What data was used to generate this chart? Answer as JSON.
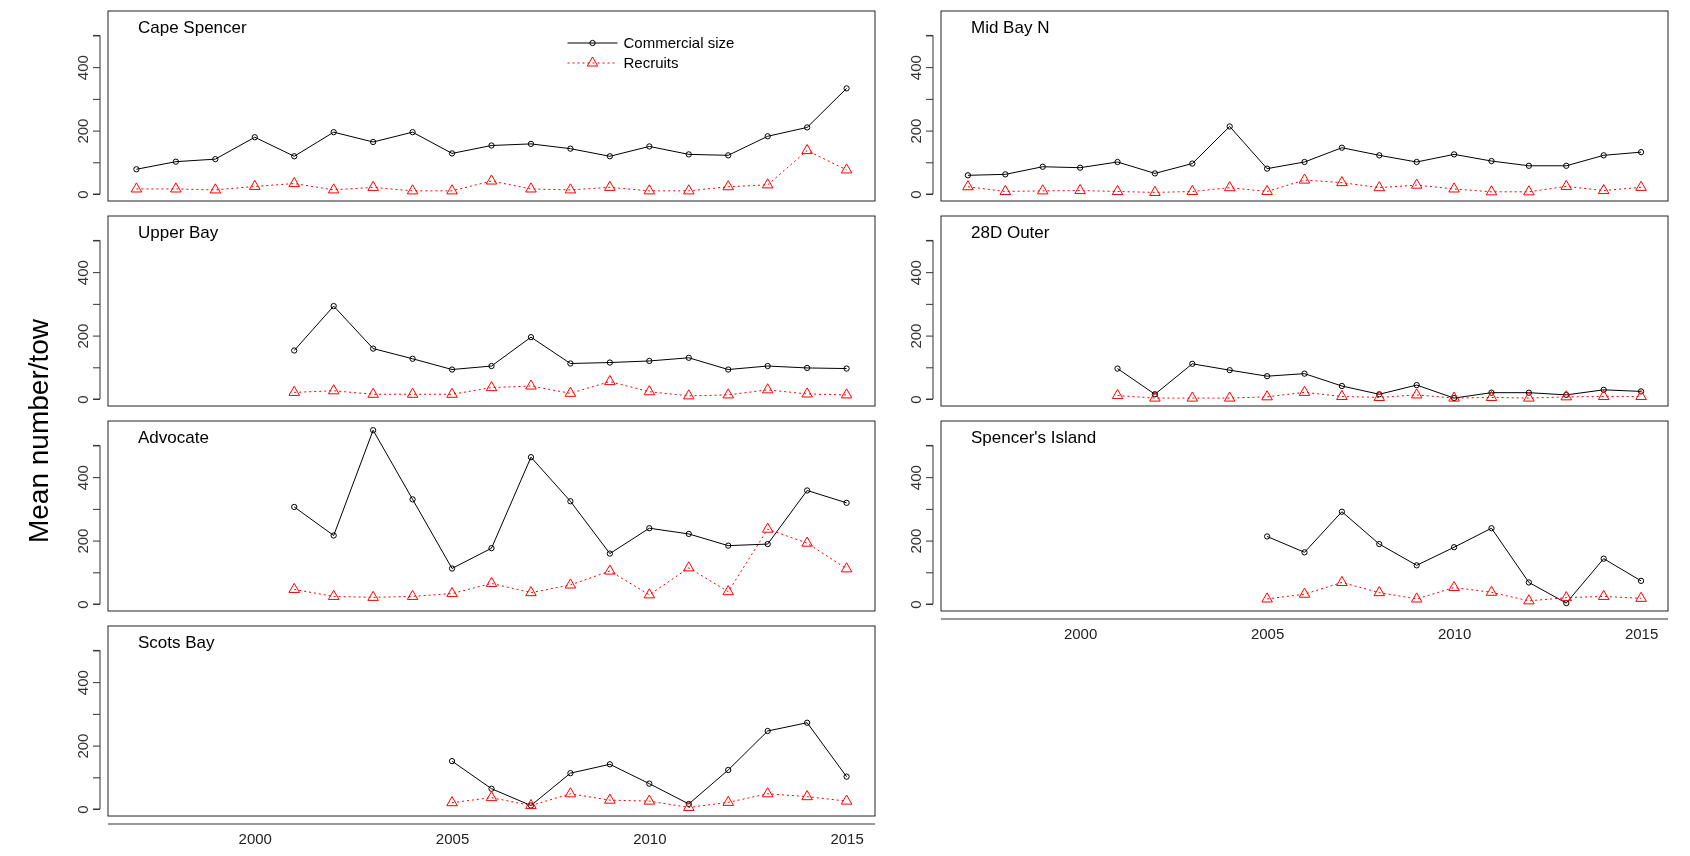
{
  "chart_data": [
    {
      "type": "line",
      "title": "Cape Spencer",
      "legend": "top right",
      "tick_labels": "y",
      "xlim": [
        1996.28,
        2015.72
      ],
      "ylim": [
        -22,
        577
      ],
      "yticks": [
        0,
        {
          "value": 100,
          "label": null
        },
        200,
        {
          "value": 300,
          "label": null
        },
        400,
        {
          "value": 500,
          "label": null
        }
      ],
      "series": [
        {
          "name": "Commercial size",
          "color": "#000000",
          "marker": "circle",
          "line_style": "solid",
          "x": [
            1997,
            1998,
            1999,
            2000,
            2001,
            2002,
            2003,
            2004,
            2005,
            2006,
            2007,
            2008,
            2009,
            2010,
            2011,
            2012,
            2013,
            2014,
            2015
          ],
          "values": [
            78,
            102,
            110,
            179,
            119,
            195,
            164,
            195,
            128,
            153,
            158,
            143,
            119,
            150,
            125,
            122,
            182,
            210,
            333
          ]
        },
        {
          "name": "Recruits",
          "color": "#ff0000",
          "marker": "triangle",
          "line_style": "dotted",
          "x": [
            1997,
            1998,
            1999,
            2000,
            2001,
            2002,
            2003,
            2004,
            2005,
            2006,
            2007,
            2008,
            2009,
            2010,
            2011,
            2012,
            2013,
            2014,
            2015
          ],
          "values": [
            16,
            16,
            13,
            24,
            33,
            13,
            21,
            10,
            10,
            41,
            16,
            13,
            21,
            10,
            10,
            23,
            29,
            137,
            76
          ]
        }
      ]
    },
    {
      "type": "line",
      "title": "Mid Bay N",
      "tick_labels": "y",
      "xlim": [
        1996.28,
        2015.72
      ],
      "ylim": [
        -22,
        577
      ],
      "yticks": [
        0,
        {
          "value": 100,
          "label": null
        },
        200,
        {
          "value": 300,
          "label": null
        },
        400,
        {
          "value": 500,
          "label": null
        }
      ],
      "series": [
        {
          "color": "#000000",
          "marker": "circle",
          "line_style": "solid",
          "x": [
            1997,
            1998,
            1999,
            2000,
            2001,
            2002,
            2003,
            2004,
            2005,
            2006,
            2007,
            2008,
            2009,
            2010,
            2011,
            2012,
            2013,
            2014,
            2015
          ],
          "values": [
            59,
            62,
            86,
            83,
            101,
            65,
            96,
            213,
            80,
            101,
            146,
            122,
            101,
            125,
            104,
            89,
            89,
            122,
            132
          ]
        },
        {
          "color": "#ff0000",
          "marker": "triangle",
          "line_style": "dotted",
          "x": [
            1997,
            1998,
            1999,
            2000,
            2001,
            2002,
            2003,
            2004,
            2005,
            2006,
            2007,
            2008,
            2009,
            2010,
            2011,
            2012,
            2013,
            2014,
            2015
          ],
          "values": [
            23,
            8,
            10,
            11,
            8,
            5,
            8,
            20,
            8,
            44,
            36,
            20,
            28,
            16,
            7,
            7,
            24,
            11,
            21
          ]
        }
      ]
    },
    {
      "type": "line",
      "title": "Upper Bay",
      "tick_labels": "y",
      "xlim": [
        1996.28,
        2015.72
      ],
      "ylim": [
        -22,
        577
      ],
      "yticks": [
        0,
        {
          "value": 100,
          "label": null
        },
        200,
        {
          "value": 300,
          "label": null
        },
        400,
        {
          "value": 500,
          "label": null
        }
      ],
      "series": [
        {
          "color": "#000000",
          "marker": "circle",
          "line_style": "solid",
          "x": [
            2001,
            2002,
            2003,
            2004,
            2005,
            2006,
            2007,
            2008,
            2009,
            2010,
            2011,
            2012,
            2013,
            2014,
            2015
          ],
          "values": [
            153,
            293,
            159,
            127,
            93,
            104,
            195,
            112,
            115,
            120,
            130,
            93,
            104,
            98,
            96
          ]
        },
        {
          "color": "#ff0000",
          "marker": "triangle",
          "line_style": "dotted",
          "x": [
            2001,
            2002,
            2003,
            2004,
            2005,
            2006,
            2007,
            2008,
            2009,
            2010,
            2011,
            2012,
            2013,
            2014,
            2015
          ],
          "values": [
            21,
            26,
            15,
            15,
            15,
            36,
            41,
            18,
            55,
            23,
            10,
            13,
            29,
            16,
            13
          ]
        }
      ]
    },
    {
      "type": "line",
      "title": "28D Outer",
      "tick_labels": "y",
      "xlim": [
        1996.28,
        2015.72
      ],
      "ylim": [
        -22,
        577
      ],
      "yticks": [
        0,
        {
          "value": 100,
          "label": null
        },
        200,
        {
          "value": 300,
          "label": null
        },
        400,
        {
          "value": 500,
          "label": null
        }
      ],
      "series": [
        {
          "color": "#000000",
          "marker": "circle",
          "line_style": "solid",
          "x": [
            2001,
            2002,
            2003,
            2004,
            2005,
            2006,
            2007,
            2008,
            2009,
            2010,
            2011,
            2012,
            2013,
            2014,
            2015
          ],
          "values": [
            96,
            15,
            111,
            91,
            72,
            80,
            41,
            15,
            44,
            3,
            20,
            20,
            13,
            29,
            24
          ]
        },
        {
          "color": "#ff0000",
          "marker": "triangle",
          "line_style": "dotted",
          "x": [
            2001,
            2002,
            2003,
            2004,
            2005,
            2006,
            2007,
            2008,
            2009,
            2010,
            2011,
            2012,
            2013,
            2014,
            2015
          ],
          "values": [
            11,
            3,
            3,
            3,
            7,
            21,
            8,
            5,
            13,
            3,
            5,
            3,
            7,
            8,
            8
          ]
        }
      ]
    },
    {
      "type": "line",
      "title": "Advocate",
      "ylabel": "Mean number/tow",
      "tick_labels": "y",
      "xlim": [
        1996.28,
        2015.72
      ],
      "ylim": [
        -22,
        577
      ],
      "yticks": [
        0,
        {
          "value": 100,
          "label": null
        },
        200,
        {
          "value": 300,
          "label": null
        },
        400,
        {
          "value": 500,
          "label": null
        }
      ],
      "series": [
        {
          "color": "#000000",
          "marker": "circle",
          "line_style": "solid",
          "x": [
            2001,
            2002,
            2003,
            2004,
            2005,
            2006,
            2007,
            2008,
            2009,
            2010,
            2011,
            2012,
            2013,
            2014,
            2015
          ],
          "values": [
            306,
            216,
            548,
            330,
            112,
            176,
            463,
            324,
            159,
            239,
            221,
            184,
            189,
            358,
            319
          ]
        },
        {
          "color": "#ff0000",
          "marker": "triangle",
          "line_style": "dotted",
          "x": [
            2001,
            2002,
            2003,
            2004,
            2005,
            2006,
            2007,
            2008,
            2009,
            2010,
            2011,
            2012,
            2013,
            2014,
            2015
          ],
          "values": [
            46,
            24,
            21,
            24,
            33,
            65,
            36,
            60,
            104,
            29,
            114,
            39,
            236,
            192,
            111
          ]
        }
      ]
    },
    {
      "type": "line",
      "title": "Spencer's Island",
      "xlim": [
        1996.28,
        2015.72
      ],
      "xticks": [
        2000,
        2005,
        2010,
        2015
      ],
      "ylim": [
        -22,
        577
      ],
      "yticks": [
        0,
        {
          "value": 100,
          "label": null
        },
        200,
        {
          "value": 300,
          "label": null
        },
        400,
        {
          "value": 500,
          "label": null
        }
      ],
      "series": [
        {
          "color": "#000000",
          "marker": "circle",
          "line_style": "solid",
          "x": [
            2005,
            2006,
            2007,
            2008,
            2009,
            2010,
            2011,
            2012,
            2013,
            2014,
            2015
          ],
          "values": [
            213,
            163,
            291,
            189,
            122,
            179,
            239,
            68,
            3,
            143,
            73
          ]
        },
        {
          "color": "#ff0000",
          "marker": "triangle",
          "line_style": "dotted",
          "x": [
            2005,
            2006,
            2007,
            2008,
            2009,
            2010,
            2011,
            2012,
            2013,
            2014,
            2015
          ],
          "values": [
            16,
            31,
            68,
            36,
            16,
            52,
            37,
            10,
            20,
            24,
            18
          ]
        }
      ]
    },
    {
      "type": "line",
      "title": "Scots Bay",
      "xlim": [
        1996.28,
        2015.72
      ],
      "xticks": [
        2000,
        2005,
        2010,
        2015
      ],
      "ylim": [
        -22,
        577
      ],
      "yticks": [
        0,
        {
          "value": 100,
          "label": null
        },
        200,
        {
          "value": 300,
          "label": null
        },
        400,
        {
          "value": 500,
          "label": null
        }
      ],
      "series": [
        {
          "color": "#000000",
          "marker": "circle",
          "line_style": "solid",
          "x": [
            2005,
            2006,
            2007,
            2008,
            2009,
            2010,
            2011,
            2012,
            2013,
            2014,
            2015
          ],
          "values": [
            151,
            64,
            11,
            113,
            141,
            80,
            16,
            123,
            246,
            272,
            102
          ]
        },
        {
          "color": "#ff0000",
          "marker": "triangle",
          "line_style": "dotted",
          "x": [
            2005,
            2006,
            2007,
            2008,
            2009,
            2010,
            2011,
            2012,
            2013,
            2014,
            2015
          ],
          "values": [
            20,
            36,
            11,
            48,
            28,
            25,
            5,
            21,
            48,
            39,
            25
          ]
        }
      ]
    }
  ]
}
